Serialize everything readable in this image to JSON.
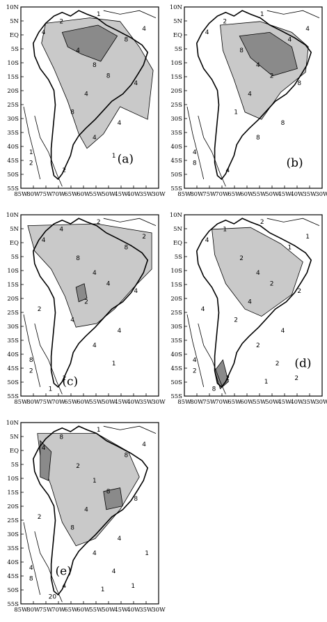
{
  "panels": [
    {
      "id": "a",
      "letter": "(a)",
      "contour_labels": [
        "1",
        "2",
        "4",
        "4",
        "8",
        "8",
        "8",
        "4",
        "4",
        "4",
        "1",
        "2",
        "2",
        "4",
        "8",
        "4",
        "1"
      ]
    },
    {
      "id": "b",
      "letter": "(b)",
      "contour_labels": [
        "1",
        "2",
        "4",
        "8",
        "4",
        "2",
        "4",
        "8",
        "8",
        "8",
        "4",
        "8",
        "4",
        "4",
        "1",
        "4"
      ]
    },
    {
      "id": "c",
      "letter": "(c)",
      "contour_labels": [
        "2",
        "4",
        "4",
        "8",
        "4",
        "4",
        "8",
        "4",
        "4",
        "4",
        "8",
        "2",
        "1",
        "2",
        "4",
        "2",
        "1",
        "2",
        "1"
      ]
    },
    {
      "id": "d",
      "letter": "(d)",
      "contour_labels": [
        "2",
        "1",
        "4",
        "2",
        "4",
        "2",
        "1",
        "2",
        "4",
        "2",
        "4",
        "2",
        "2",
        "4",
        "2",
        "1",
        "2",
        "4",
        "8",
        "2",
        "1"
      ]
    },
    {
      "id": "e",
      "letter": "(e)",
      "contour_labels": [
        "1",
        "8",
        "4",
        "2",
        "1",
        "8",
        "8",
        "8",
        "4",
        "4",
        "4",
        "8",
        "4",
        "4",
        "8",
        "4",
        "4",
        "2",
        "20",
        "1",
        "1",
        "1"
      ]
    }
  ],
  "axes": {
    "lat_labels": [
      "10N",
      "5N",
      "EQ",
      "5S",
      "10S",
      "15S",
      "20S",
      "25S",
      "30S",
      "35S",
      "40S",
      "45S",
      "50S",
      "55S"
    ],
    "lon_labels": [
      "85W",
      "80W",
      "75W",
      "70W",
      "65W",
      "60W",
      "55W",
      "50W",
      "45W",
      "40W",
      "35W",
      "30W"
    ]
  }
}
